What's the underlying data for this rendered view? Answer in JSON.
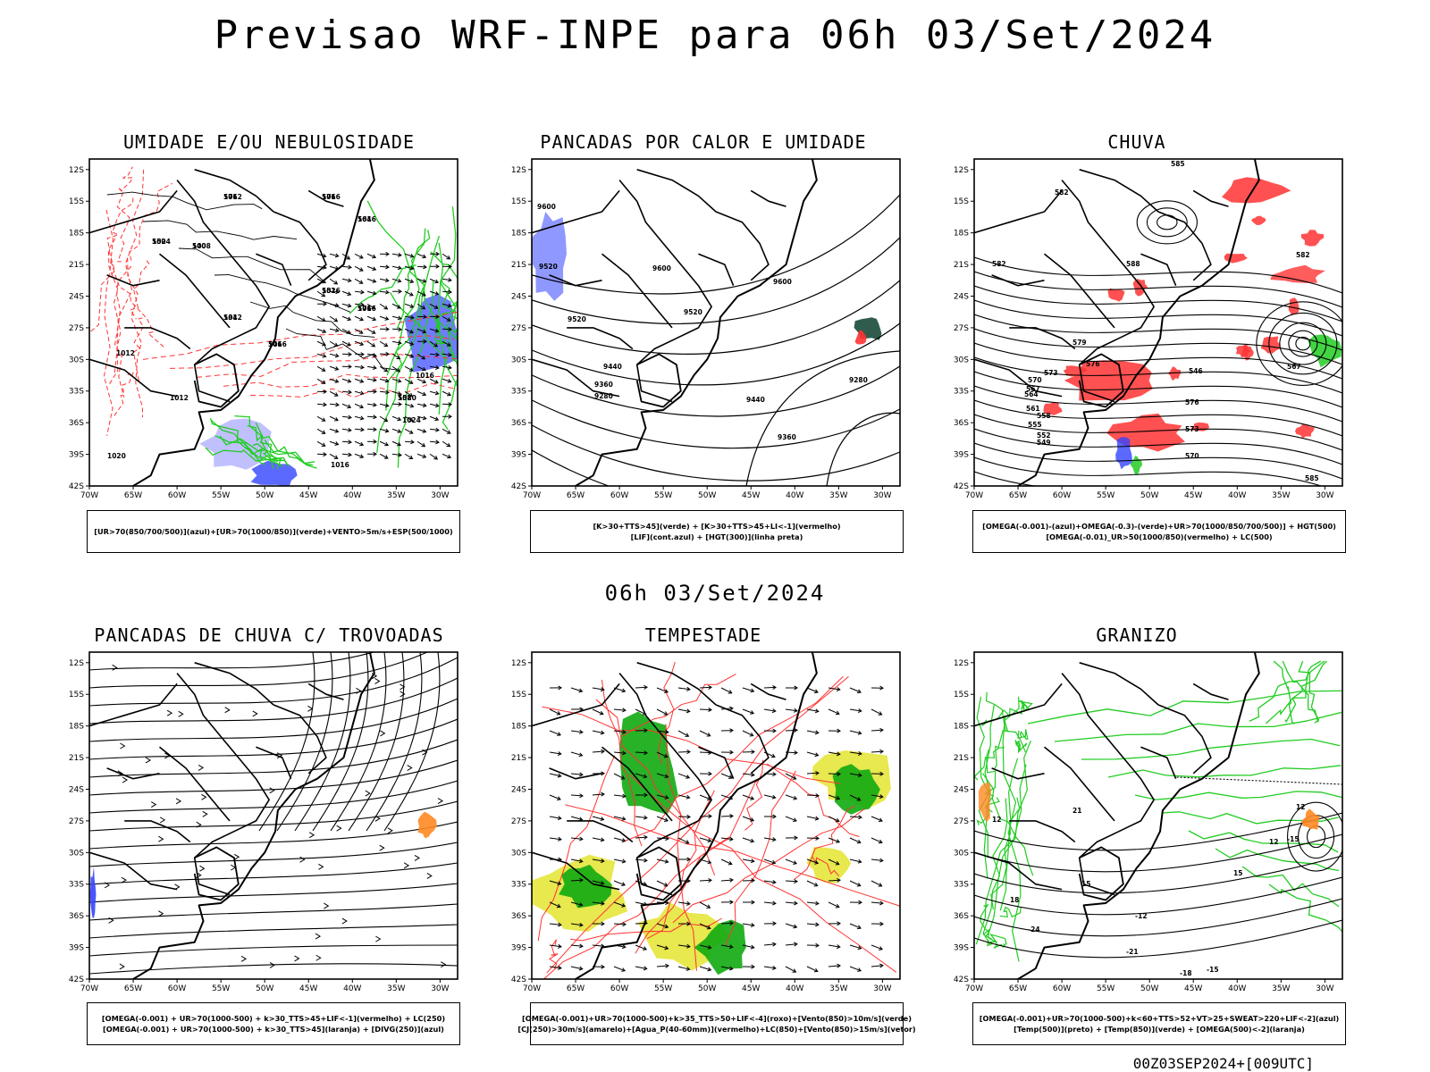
{
  "page_title": "Previsao WRF-INPE  para 06h 03/Set/2024",
  "mid_date": "06h 03/Set/2024",
  "run_stamp": "00Z03SEP2024+[009UTC]",
  "axes": {
    "lat_labels": [
      "12S",
      "15S",
      "18S",
      "21S",
      "24S",
      "27S",
      "30S",
      "33S",
      "36S",
      "39S",
      "42S"
    ],
    "lon_labels": [
      "70W",
      "65W",
      "60W",
      "55W",
      "50W",
      "45W",
      "40W",
      "35W",
      "30W"
    ]
  },
  "colors": {
    "green": "#22cc22",
    "red": "#ff3333",
    "blue": "#3344ff",
    "lavender": "#b0b0ff",
    "yellow": "#e4e430",
    "darkgreen": "#11aa11",
    "orange": "#ff8822",
    "black": "#000000"
  },
  "panels": [
    {
      "title": "UMIDADE E/OU NEBULOSIDADE",
      "legend": [
        "[UR>70(850/700/500)](azul)+[UR>70(1000/850)](verde)+VENTO>5m/s+ESP(500/1000)"
      ],
      "contour_labels": [
        "1012",
        "1016",
        "1016",
        "1004",
        "1008",
        "1016",
        "1016",
        "1012",
        "1016",
        "1020",
        "1016",
        "1024",
        "1016",
        "1020",
        "1012",
        "1012",
        "576",
        "576",
        "564",
        "552",
        "540",
        "552",
        "576",
        "534",
        "546",
        "558"
      ]
    },
    {
      "title": "PANCADAS POR CALOR E UMIDADE",
      "legend": [
        "[K>30+TTS>45](verde) + [K>30+TTS>45+LI<-1](vermelho)",
        "[LIF](cont.azul) + [HGT(300)](linha preta)"
      ],
      "contour_labels": [
        "9600",
        "9520",
        "9520",
        "9600",
        "9600",
        "9520",
        "9440",
        "9360",
        "9280",
        "9440",
        "9360",
        "9280"
      ]
    },
    {
      "title": "CHUVA",
      "legend": [
        "[OMEGA(-0.001)-(azul)+OMEGA(-0.3)-(verde)+UR>70(1000/850/700/500)] + HGT(500)",
        "[OMEGA(-0.01)_UR>50(1000/850)(vermelho) + LC(500)"
      ],
      "contour_labels": [
        "585",
        "582",
        "582",
        "579",
        "576",
        "573",
        "570",
        "567",
        "564",
        "561",
        "558",
        "555",
        "552",
        "549",
        "546",
        "576",
        "573",
        "570",
        "567",
        "582",
        "588",
        "585"
      ]
    },
    {
      "title": "PANCADAS DE CHUVA C/ TROVOADAS",
      "legend": [
        "[OMEGA(-0.001) + UR>70(1000-500) + k>30_TTS>45+LIF<-1](vermelho) + LC(250)",
        "[OMEGA(-0.001) + UR>70(1000-500) + k>30_TTS>45](laranja) + [DIVG(250)](azul)"
      ],
      "contour_labels": []
    },
    {
      "title": "TEMPESTADE",
      "legend": [
        "[OMEGA(-0.001)+UR>70(1000-500)+k>35_TTS>50+LIF<-4](roxo)+[Vento(850)>10m/s](verde)",
        "[CJ(250)>30m/s](amarelo)+[Agua_P(40-60mm)](vermelho)+LC(850)+[Vento(850)>15m/s](vetor)"
      ],
      "contour_labels": []
    },
    {
      "title": "GRANIZO",
      "legend": [
        "[OMEGA(-0.001)+UR>70(1000-500)+k<60+TTS>52+VT>25+SWEAT>220+LIF<-2](azul)",
        "[Temp(500)](preto) + [Temp(850)](verde) + [OMEGA(500)<-2](laranja)"
      ],
      "contour_labels": [
        "21",
        "12",
        "15",
        "18",
        "12",
        "15",
        "-12",
        "-21",
        "-15",
        "-18",
        "-24",
        "-15",
        "12"
      ]
    }
  ]
}
